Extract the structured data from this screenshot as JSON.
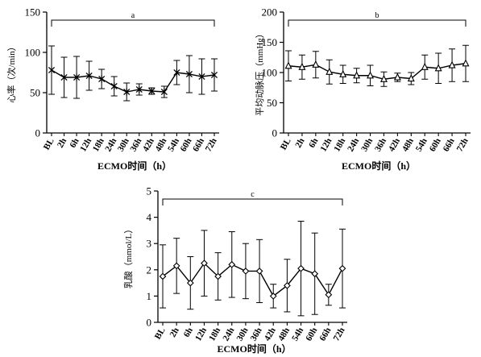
{
  "chart_data": [
    {
      "type": "line",
      "letter": "a",
      "ylabel": "心率（次/min）",
      "xlabel": "ECMO时间（h）",
      "ylim": [
        0,
        150
      ],
      "yticks": [
        0,
        50,
        100,
        150
      ],
      "categories": [
        "BL",
        "2h",
        "6h",
        "12h",
        "18h",
        "24h",
        "30h",
        "36h",
        "42h",
        "48h",
        "54h",
        "60h",
        "66h",
        "72h"
      ],
      "marker": "x",
      "series": [
        {
          "values": [
            78,
            69,
            69,
            71,
            67,
            58,
            51,
            54,
            52,
            51,
            75,
            73,
            70,
            72
          ],
          "err": [
            30,
            25,
            26,
            18,
            12,
            12,
            11,
            7,
            4,
            7,
            15,
            23,
            22,
            20
          ]
        }
      ],
      "bracket": true,
      "grid": false
    },
    {
      "type": "line",
      "letter": "b",
      "ylabel": "平均动脉压（mmHg）",
      "xlabel": "ECMO时间（h）",
      "ylim": [
        0,
        200
      ],
      "yticks": [
        0,
        50,
        100,
        150,
        200
      ],
      "categories": [
        "BL",
        "2h",
        "6h",
        "12h",
        "18h",
        "24h",
        "30h",
        "36h",
        "42h",
        "48h",
        "54h",
        "60h",
        "66h",
        "72h"
      ],
      "marker": "triangle",
      "series": [
        {
          "values": [
            111,
            109,
            113,
            101,
            97,
            95,
            95,
            89,
            92,
            90,
            109,
            107,
            112,
            115
          ],
          "err": [
            25,
            20,
            22,
            20,
            15,
            12,
            17,
            12,
            7,
            10,
            20,
            25,
            27,
            30
          ]
        }
      ],
      "bracket": true,
      "grid": false
    },
    {
      "type": "line",
      "letter": "c",
      "ylabel": "乳酸（mmol/L）",
      "xlabel": "ECMO时间（h）",
      "ylim": [
        0,
        5
      ],
      "yticks": [
        0,
        1,
        2,
        3,
        4,
        5
      ],
      "categories": [
        "BL",
        "2h",
        "6h",
        "12h",
        "18h",
        "24h",
        "30h",
        "36h",
        "42h",
        "48h",
        "54h",
        "60h",
        "66h",
        "72h"
      ],
      "marker": "diamond",
      "series": [
        {
          "values": [
            1.75,
            2.15,
            1.5,
            2.25,
            1.75,
            2.2,
            1.95,
            1.95,
            1.0,
            1.4,
            2.05,
            1.85,
            1.05,
            2.05
          ],
          "err": [
            1.2,
            1.05,
            1.0,
            1.25,
            0.9,
            1.25,
            1.05,
            1.2,
            0.45,
            1.0,
            1.8,
            1.55,
            0.4,
            1.5
          ]
        }
      ],
      "bracket": true,
      "grid": false
    }
  ]
}
